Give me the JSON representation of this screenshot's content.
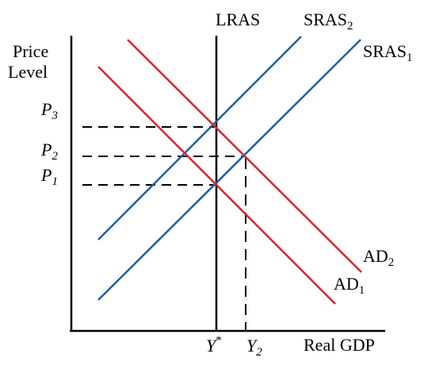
{
  "axes": {
    "y_label_line1": "Price",
    "y_label_line2": "Level",
    "x_label": "Real GDP"
  },
  "curves": {
    "lras": "LRAS",
    "sras2_base": "SRAS",
    "sras2_sub": "2",
    "sras1_base": "SRAS",
    "sras1_sub": "1",
    "ad2_base": "AD",
    "ad2_sub": "2",
    "ad1_base": "AD",
    "ad1_sub": "1"
  },
  "price_levels": {
    "p3_base": "P",
    "p3_sub": "3",
    "p2_base": "P",
    "p2_sub": "2",
    "p1_base": "P",
    "p1_sub": "1"
  },
  "output_levels": {
    "y_star_base": "Y",
    "y_star_sup": "*",
    "y2_base": "Y",
    "y2_sub": "2"
  },
  "colors": {
    "axis": "#000000",
    "lras": "#000000",
    "sras": "#1f5f9e",
    "ad": "#e0202e",
    "guides": "#000000"
  }
}
